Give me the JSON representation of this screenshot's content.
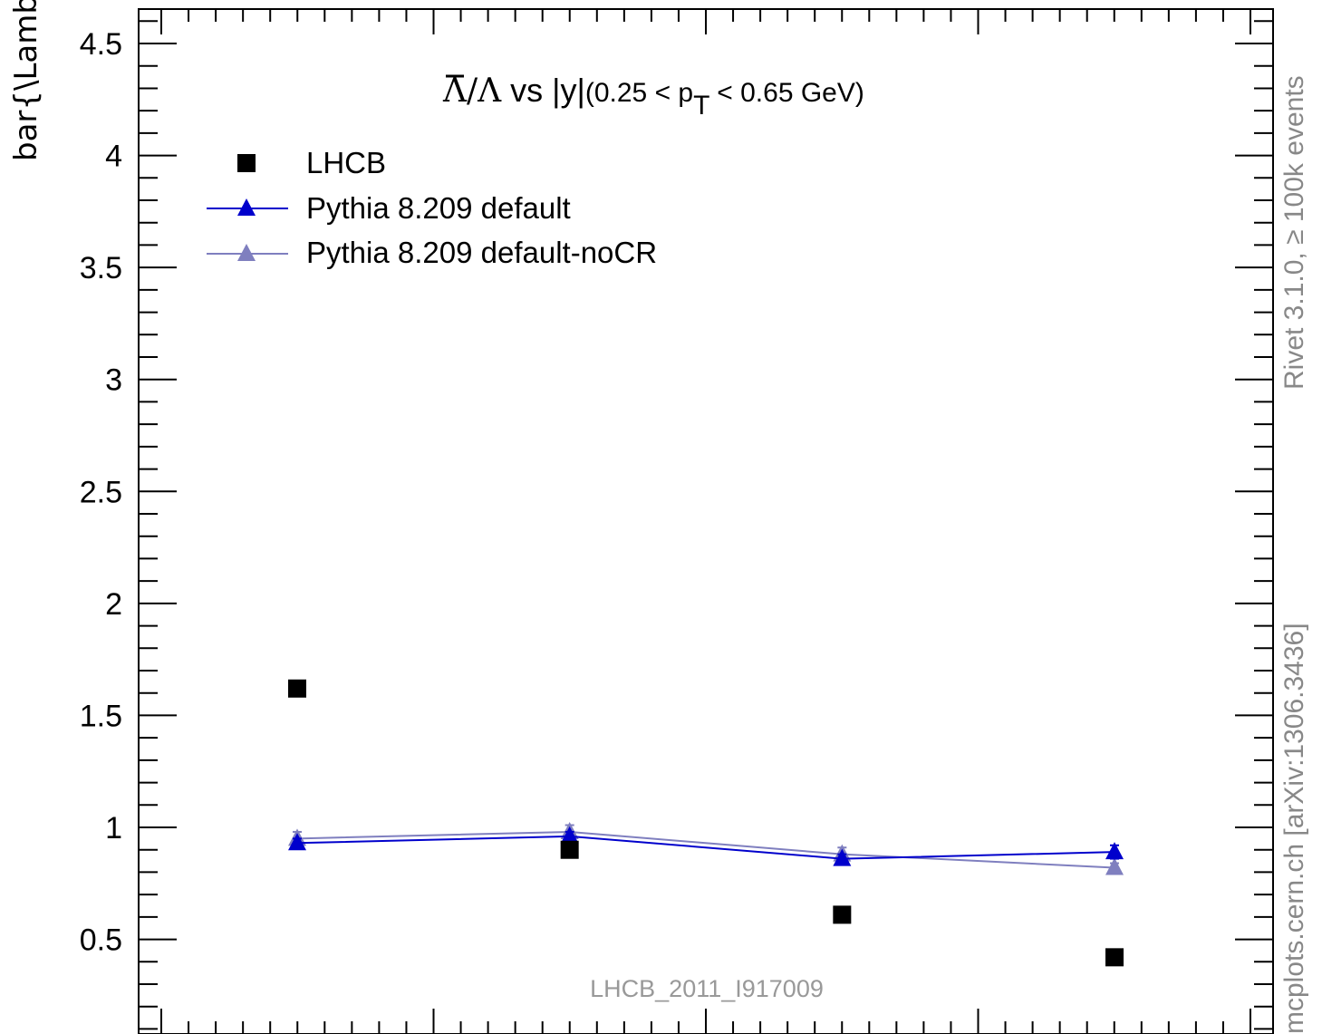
{
  "chart_data": {
    "type": "scatter",
    "title": {
      "main_left": "/",
      "overline_symbol": "Λ",
      "symbol": "Λ",
      "main_right": " vs |y|",
      "cut_open": "(0.25 < p",
      "cut_sub": "T",
      "cut_close": " < 0.65 GeV)"
    },
    "ylabel": "bar{\\Lambda}/\\Lambda",
    "ylim": [
      0.1,
      4.65
    ],
    "xlim": [
      0.0,
      4.0
    ],
    "y_ticks": [
      "0.5",
      "1",
      "1.5",
      "2",
      "2.5",
      "3",
      "3.5",
      "4",
      "4.5"
    ],
    "y_tick_values": [
      0.5,
      1,
      1.5,
      2,
      2.5,
      3,
      3.5,
      4,
      4.5
    ],
    "x_major_ticks": [
      0.0,
      1.0,
      2.0,
      3.0,
      4.0
    ],
    "x": [
      0.5,
      1.5,
      2.5,
      3.5
    ],
    "series": [
      {
        "name": "LHCB",
        "marker": "square",
        "line": false,
        "color": "#000000",
        "values": [
          1.62,
          0.9,
          0.61,
          0.42
        ]
      },
      {
        "name": "Pythia 8.209 default",
        "marker": "triangle",
        "line": true,
        "color": "#0000cc",
        "values": [
          0.93,
          0.96,
          0.86,
          0.89
        ],
        "errors": [
          0.02,
          0.02,
          0.02,
          0.03
        ]
      },
      {
        "name": "Pythia 8.209 default-noCR",
        "marker": "triangle",
        "line": true,
        "color": "#7f7fbf",
        "values": [
          0.95,
          0.98,
          0.88,
          0.82
        ],
        "errors": [
          0.03,
          0.03,
          0.03,
          0.02
        ]
      }
    ],
    "legend_position": "top-left",
    "side_texts": {
      "rivet": "Rivet 3.1.0, ≥ 100k events",
      "mcplots": "mcplots.cern.ch [arXiv:1306.3436]"
    },
    "analysis_label": "LHCB_2011_I917009"
  }
}
